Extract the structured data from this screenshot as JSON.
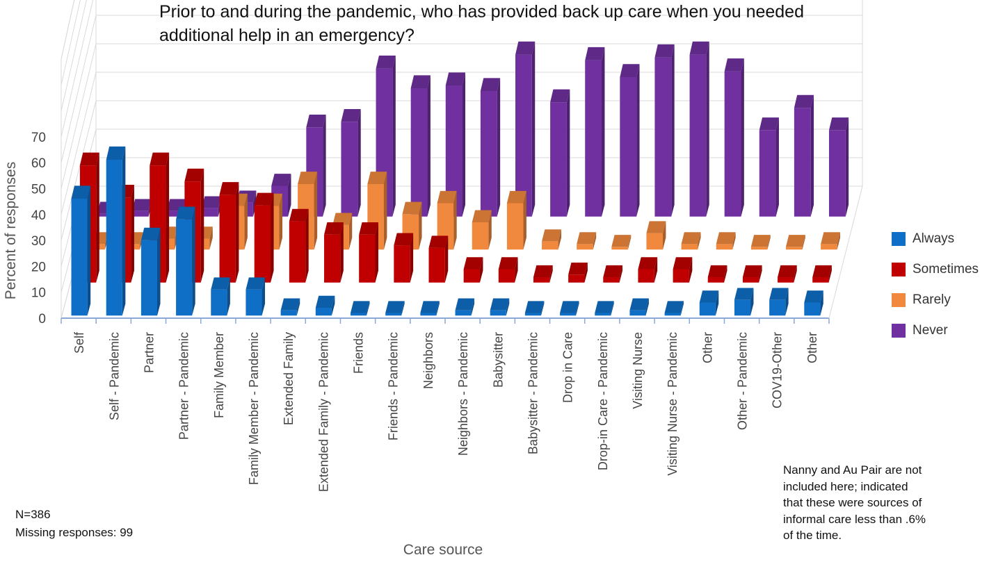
{
  "chart_data": {
    "type": "bar",
    "subtype": "3d-clustered-column",
    "title_lines": [
      "Prior to and during the pandemic, who has provided back up care when you needed",
      "additional help in an emergency?"
    ],
    "xlabel": "Care source",
    "ylabel": "Percent of responses",
    "ylim": [
      0,
      70
    ],
    "yticks": [
      0,
      10,
      20,
      30,
      40,
      50,
      60,
      70
    ],
    "grid": true,
    "legend_position": "right",
    "categories": [
      "Self",
      "Self - Pandemic",
      "Partner",
      "Partner - Pandemic",
      "Family Member",
      "Family Member - Pandemic",
      "Extended Family",
      "Extended Family - Pandemic",
      "Friends",
      "Friends - Pandemic",
      "Neighbors",
      "Neighbors - Pandemic",
      "Babysitter",
      "Babysitter - Pandemic",
      "Drop in Care",
      "Drop-in Care - Pandemic",
      "Visiting Nurse",
      "Visiting Nurse - Pandemic",
      "Other",
      "Other - Pandemic",
      "COV19-Other",
      "Other"
    ],
    "series": [
      {
        "name": "Always",
        "color": "#0f6fc6",
        "values": [
          45,
          60,
          29,
          37,
          10,
          10,
          2,
          3,
          1,
          1,
          1,
          2,
          2,
          1,
          1,
          1,
          2,
          1,
          5,
          6,
          6,
          5
        ]
      },
      {
        "name": "Sometimes",
        "color": "#c00000",
        "values": [
          44,
          32,
          44,
          38,
          33,
          29,
          23,
          18,
          18,
          14,
          13,
          5,
          5,
          2,
          3,
          2,
          5,
          5,
          2,
          2,
          2,
          2
        ]
      },
      {
        "name": "Rarely",
        "color": "#f0883d",
        "values": [
          2,
          2,
          4,
          4,
          16,
          16,
          24,
          9,
          24,
          13,
          17,
          10,
          17,
          3,
          2,
          1,
          6,
          2,
          2,
          1,
          1,
          2
        ]
      },
      {
        "name": "Never",
        "color": "#7030a0",
        "values": [
          1,
          2,
          2,
          3,
          5,
          11,
          32,
          34,
          53,
          46,
          47,
          45,
          58,
          41,
          56,
          50,
          57,
          58,
          52,
          31,
          39,
          31
        ]
      }
    ]
  },
  "note_lines": [
    "Nanny and Au Pair are not",
    "included here; indicated",
    "that these were sources of",
    "informal care less than .6%",
    "of the time."
  ],
  "n_label": "N=386",
  "missing_label": "Missing responses: 99"
}
